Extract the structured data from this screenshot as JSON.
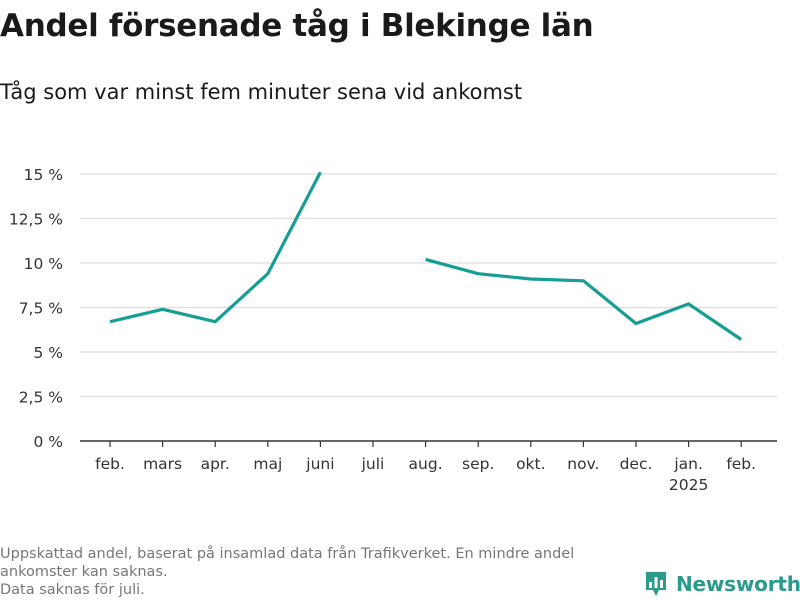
{
  "header": {
    "title": "Andel försenade tåg i Blekinge län",
    "subtitle": "Tåg som var minst fem minuter sena vid ankomst"
  },
  "footnote": {
    "lines": [
      "Uppskattad andel, baserat på insamlad data från Trafikverket. En mindre andel",
      "ankomster kan saknas.",
      "Data saknas för juli."
    ]
  },
  "brand": {
    "name": "Newsworthy",
    "color": "#2a9a8a",
    "icon": "newsworthy-logo-icon"
  },
  "chart_data": {
    "type": "line",
    "title": "Andel försenade tåg i Blekinge län",
    "subtitle": "Tåg som var minst fem minuter sena vid ankomst",
    "categories": [
      "feb.",
      "mars",
      "apr.",
      "maj",
      "juni",
      "juli",
      "aug.",
      "sep.",
      "okt.",
      "nov.",
      "dec.",
      "jan.",
      "feb."
    ],
    "category_sublabels": [
      "",
      "",
      "",
      "",
      "",
      "",
      "",
      "",
      "",
      "",
      "",
      "2025",
      ""
    ],
    "series": [
      {
        "values": [
          6.7,
          7.4,
          6.7,
          9.4,
          15.1,
          null,
          10.2,
          9.4,
          9.1,
          9.0,
          6.6,
          7.7,
          5.7
        ],
        "color": "#159e94"
      }
    ],
    "ylim": [
      0,
      15
    ],
    "yticks": [
      0,
      2.5,
      5,
      7.5,
      10,
      12.5,
      15
    ],
    "ytick_labels": [
      "0 %",
      "2,5 %",
      "5 %",
      "7,5 %",
      "10 %",
      "12,5 %",
      "15 %"
    ],
    "xlabel": "",
    "ylabel": "",
    "grid": true,
    "legend": "none"
  }
}
